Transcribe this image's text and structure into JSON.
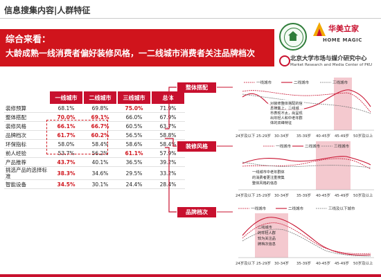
{
  "header": {
    "title": "信息搜集内容|人群特征"
  },
  "banner": {
    "line1": "综合来看：",
    "line2": "大龄成熟一线消费者偏好装修风格，一二线城市消费者关注品牌档次"
  },
  "logos": {
    "home_magic_cn": "华美立家",
    "home_magic_en": "HOME MAGIC",
    "pku_cn": "北京大学市场与媒介研究中心",
    "pku_en": "Market Research and Media Center of PKU"
  },
  "table": {
    "headers": [
      "一线城市",
      "二线城市",
      "三线城市",
      "总体"
    ],
    "rows": [
      {
        "label": "装修预算",
        "values": [
          "68.1%",
          "69.8%",
          "75.0%",
          "71.9%"
        ]
      },
      {
        "label": "整体搭配",
        "values": [
          "70.0%",
          "69.1%",
          "66.0%",
          "67.9%"
        ]
      },
      {
        "label": "装修风格",
        "values": [
          "66.1%",
          "66.7%",
          "60.5%",
          "63.7%"
        ]
      },
      {
        "label": "品牌档次",
        "values": [
          "61.7%",
          "60.2%",
          "56.5%",
          "58.8%"
        ]
      },
      {
        "label": "环保指标",
        "values": [
          "58.0%",
          "58.4%",
          "58.6%",
          "58.4%"
        ]
      },
      {
        "label": "前人经验",
        "values": [
          "53.7%",
          "56.2%",
          "61.1%",
          "57.9%"
        ]
      },
      {
        "label": "产品推荐",
        "values": [
          "43.7%",
          "40.1%",
          "36.5%",
          "39.2%"
        ]
      },
      {
        "label": "挑选产品的选择标准",
        "values": [
          "38.3%",
          "34.6%",
          "29.5%",
          "33.2%"
        ]
      },
      {
        "label": "智能设备",
        "values": [
          "34.5%",
          "30.1%",
          "24.4%",
          "28.4%"
        ]
      }
    ]
  },
  "sections": {
    "s1": "整体搭配",
    "s2": "装修风格",
    "s3": "品牌档次"
  },
  "legend": {
    "tier1": "一线城市",
    "tier2": "二线城市",
    "tier3": "三线及以下城市",
    "tier3_short": "三线城市"
  },
  "age_ticks": [
    "24岁及以下",
    "25-29岁",
    "30-34岁",
    "35-39岁",
    "40-45岁",
    "45-49岁",
    "50岁及以上"
  ],
  "notes": {
    "n1_lines": [
      "对装修整体搭配的信",
      "息搜集上，二线城",
      "市表现不太，尚呈现",
      "出年轻人和中老年群",
      "体的双峰特征"
    ],
    "n2_lines": [
      "一线城市中老年群体",
      "的消费者更注重搜集",
      "整体风格的信息"
    ],
    "n3_lines": [
      "二线城市",
      "的年轻人群",
      "较为关注品",
      "牌档次信息"
    ]
  },
  "colors": {
    "brand_red": "#c8102e",
    "banner_red": "#d0141c",
    "highlight_pink": "#f4c9cf"
  }
}
